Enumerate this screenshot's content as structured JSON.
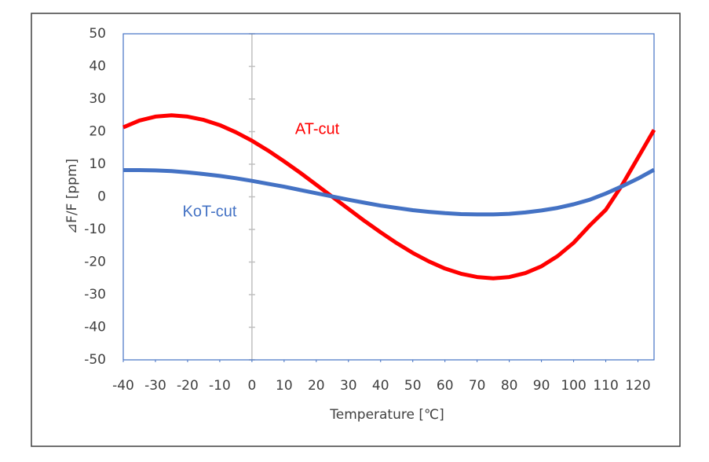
{
  "chart_data": {
    "type": "line",
    "x_label": "Temperature [℃]",
    "y_label": "⊿F/F [ppm]",
    "x": [
      -40,
      -35,
      -30,
      -25,
      -20,
      -15,
      -10,
      -5,
      0,
      5,
      10,
      15,
      20,
      25,
      30,
      35,
      40,
      45,
      50,
      55,
      60,
      65,
      70,
      75,
      80,
      85,
      90,
      95,
      100,
      105,
      110,
      115,
      120,
      125
    ],
    "series": [
      {
        "name": "AT-cut",
        "color": "#ff0000",
        "values": [
          21.3,
          23.4,
          24.6,
          25,
          24.6,
          23.6,
          22.0,
          19.8,
          17.2,
          14.2,
          10.9,
          7.4,
          3.7,
          0,
          -3.7,
          -7.4,
          -10.9,
          -14.2,
          -17.2,
          -19.8,
          -22.0,
          -23.6,
          -24.6,
          -25,
          -24.6,
          -23.4,
          -21.3,
          -18.2,
          -14.1,
          -8.8,
          -4,
          3.5,
          12,
          20.5
        ]
      },
      {
        "name": "KoT-cut",
        "color": "#4472c4",
        "values": [
          8.2,
          8.2,
          8.1,
          7.9,
          7.5,
          7,
          6.4,
          5.7,
          4.9,
          4,
          3.1,
          2.1,
          1.1,
          0.1,
          -0.9,
          -1.8,
          -2.7,
          -3.4,
          -4.1,
          -4.6,
          -5,
          -5.3,
          -5.4,
          -5.4,
          -5.2,
          -4.8,
          -4.2,
          -3.4,
          -2.3,
          -0.9,
          1,
          3.2,
          5.6,
          8.3
        ]
      }
    ],
    "xlim": [
      -40,
      125
    ],
    "xticks": [
      -40,
      -30,
      -20,
      -10,
      0,
      10,
      20,
      30,
      40,
      50,
      60,
      70,
      80,
      90,
      100,
      110,
      120
    ],
    "ylim": [
      -50,
      50
    ],
    "yticks": [
      -50,
      -40,
      -30,
      -20,
      -10,
      0,
      10,
      20,
      30,
      40,
      50
    ]
  }
}
